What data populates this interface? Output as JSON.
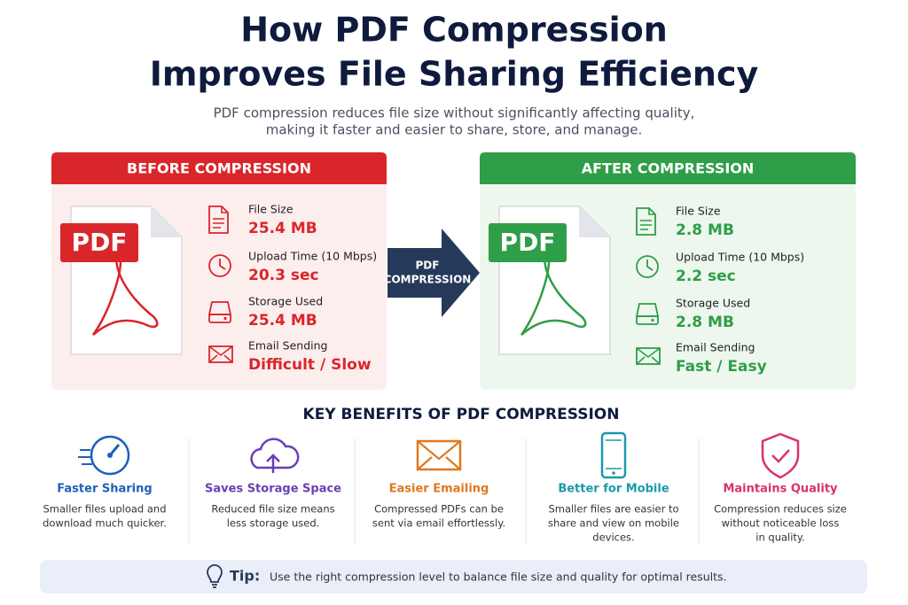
{
  "title": [
    "How PDF Compression",
    "Improves File Sharing Efficiency"
  ],
  "subtitle": [
    "PDF compression reduces file size without significantly affecting quality,",
    "making it faster and easier to share, store, and manage."
  ],
  "before": {
    "header": "BEFORE COMPRESSION",
    "badge": "PDF",
    "items": [
      {
        "label": "File Size",
        "value": "25.4 MB"
      },
      {
        "label": "Upload Time (10 Mbps)",
        "value": "20.3 sec"
      },
      {
        "label": "Storage Used",
        "value": "25.4 MB"
      },
      {
        "label": "Email Sending",
        "value": "Difficult / Slow"
      }
    ]
  },
  "arrow": [
    "PDF",
    "COMPRESSION"
  ],
  "after": {
    "header": "AFTER COMPRESSION",
    "badge": "PDF",
    "items": [
      {
        "label": "File Size",
        "value": "2.8 MB"
      },
      {
        "label": "Upload Time (10 Mbps)",
        "value": "2.2 sec"
      },
      {
        "label": "Storage Used",
        "value": "2.8 MB"
      },
      {
        "label": "Email Sending",
        "value": "Fast / Easy"
      }
    ]
  },
  "benefits": {
    "heading": "KEY BENEFITS OF PDF COMPRESSION",
    "items": [
      {
        "title": "Faster Sharing",
        "lines": [
          "Smaller files upload and",
          "download much quicker."
        ]
      },
      {
        "title": "Saves Storage Space",
        "lines": [
          "Reduced file size means",
          "less storage used."
        ]
      },
      {
        "title": "Easier Emailing",
        "lines": [
          "Compressed PDFs can be",
          "sent via email effortlessly."
        ]
      },
      {
        "title": "Better for Mobile",
        "lines": [
          "Smaller files are easier to",
          "share and view on mobile",
          "devices."
        ]
      },
      {
        "title": "Maintains Quality",
        "lines": [
          "Compression reduces size",
          "without noticeable loss",
          "in quality."
        ]
      }
    ]
  },
  "tip": {
    "label": "Tip:",
    "text": "Use the right compression level to balance file size and quality for optimal results."
  }
}
